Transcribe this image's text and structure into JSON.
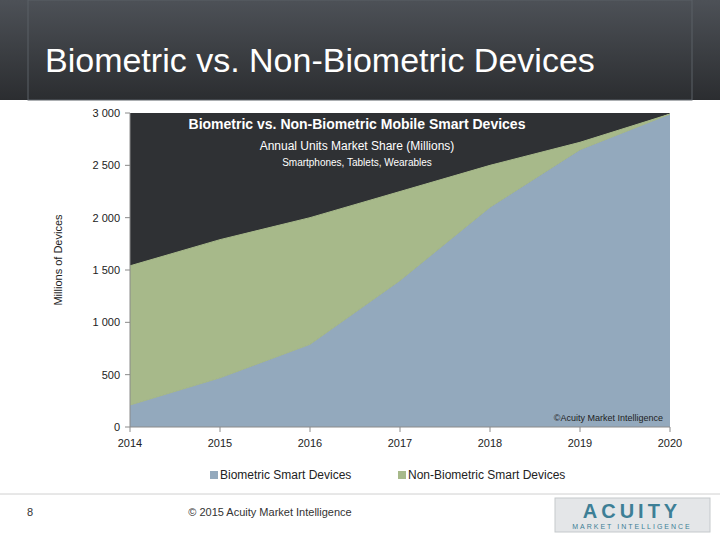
{
  "slide": {
    "title": "Biometric vs. Non-Biometric Devices",
    "page_number": "8",
    "footer": "© 2015 Acuity Market Intelligence",
    "logo": "ACUITY",
    "logo_tagline": "MARKET INTELLIGENCE"
  },
  "chart_data": {
    "type": "area",
    "stacked": true,
    "title": "Biometric vs. Non-Biometric Mobile Smart Devices",
    "subtitle": "Annual Units Market Share (Millions)",
    "annotations": [
      "Smartphones, Tablets, Wearables",
      "©Acuity Market Intelligence"
    ],
    "y_label": "Millions of Devices",
    "x": [
      2014,
      2015,
      2016,
      2017,
      2018,
      2019,
      2020
    ],
    "xlim": [
      2014,
      2020
    ],
    "xticks": [
      2014,
      2015,
      2016,
      2017,
      2018,
      2019,
      2020
    ],
    "ylim": [
      0,
      3000
    ],
    "yticks": [
      0,
      500,
      {
        "value": 1000,
        "label": "1 000"
      },
      {
        "value": 1500,
        "label": "1 500"
      },
      {
        "value": 2000,
        "label": "2 000"
      },
      {
        "value": 2500,
        "label": "2 500"
      },
      {
        "value": 3000,
        "label": "3 000"
      }
    ],
    "grid": false,
    "legend": "bottom",
    "series": [
      {
        "name": "Biometric Smart Devices",
        "color": "#93a9bd",
        "values": [
          210,
          470,
          790,
          1400,
          2100,
          2650,
          2990
        ]
      },
      {
        "name": "Non-Biometric Smart Devices",
        "color": "#a7b98a",
        "values": [
          1330,
          1320,
          1210,
          850,
          400,
          70,
          0
        ]
      }
    ]
  }
}
